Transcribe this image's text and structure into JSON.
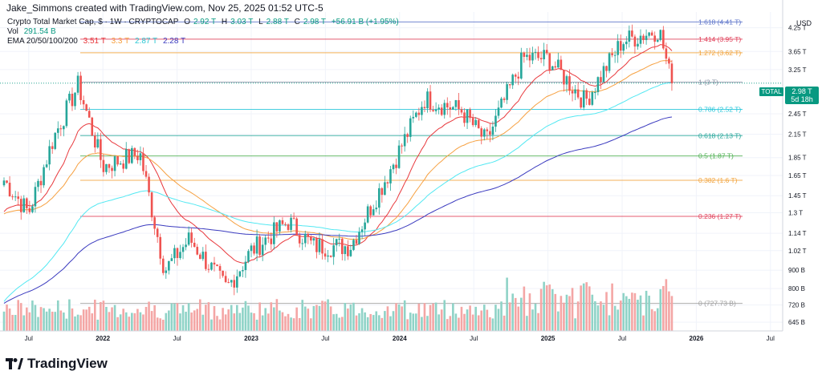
{
  "header": {
    "created_by": "Jake_Simmons created with TradingView.com, Nov 25, 2025 01:52 UTC-5"
  },
  "legend": {
    "symbol": "Crypto Total Market Cap, $ · 1W · CRYPTOCAP",
    "ohlc": [
      {
        "key": "O",
        "value": "2.92 T"
      },
      {
        "key": "H",
        "value": "3.03 T"
      },
      {
        "key": "L",
        "value": "2.88 T"
      },
      {
        "key": "C",
        "value": "2.98 T"
      }
    ],
    "change": "+56.91 B (+1.95%)",
    "vol_label": "Vol",
    "vol_value": "291.54 B",
    "ema_label": "EMA 20/50/100/200",
    "ema_values": [
      "3.51 T",
      "3.3 T",
      "2.87 T",
      "2.28 T"
    ]
  },
  "price_axis": {
    "currency": "USD",
    "ticks": [
      "4.25 T",
      "3.65 T",
      "3.25 T",
      "2.45 T",
      "2.15 T",
      "1.85 T",
      "1.65 T",
      "1.45 T",
      "1.3 T",
      "1.14 T",
      "1.02 T",
      "900 B",
      "800 B",
      "720 B",
      "645 B"
    ]
  },
  "time_axis": {
    "labels": [
      "Jul",
      "2022",
      "Jul",
      "2023",
      "Jul",
      "2024",
      "Jul",
      "2025",
      "Jul",
      "2026",
      "Jul"
    ]
  },
  "badges": {
    "symbol": "TOTAL",
    "last_price": "2.98 T",
    "countdown": "5d 18h"
  },
  "colors": {
    "up": "#26a69a",
    "down": "#ef5350",
    "vol_up": "#8fd3c7",
    "vol_down": "#f4a6a5",
    "ema20": "#e8383c",
    "ema50": "#f6a040",
    "ema100": "#53e8f2",
    "ema200": "#3b3bbf"
  },
  "chart_data": {
    "type": "candlestick",
    "title": "Crypto Total Market Cap, $ · 1W · CRYPTOCAP",
    "xlabel": "",
    "ylabel": "USD",
    "x_range": [
      "2021-05",
      "2026-08"
    ],
    "fib_levels": [
      {
        "ratio": "1.618",
        "value": "4.41 T",
        "color": "#5b73c9"
      },
      {
        "ratio": "1.414",
        "value": "3.95 T",
        "color": "#e0405a"
      },
      {
        "ratio": "1.272",
        "value": "3.62 T",
        "color": "#f2a33b"
      },
      {
        "ratio": "1",
        "value": "3 T",
        "color": "#8a94a6"
      },
      {
        "ratio": "0.786",
        "value": "2.52 T",
        "color": "#26c6da"
      },
      {
        "ratio": "0.618",
        "value": "2.13 T",
        "color": "#26a69a"
      },
      {
        "ratio": "0.5",
        "value": "1.87 T",
        "color": "#4caf50"
      },
      {
        "ratio": "0.382",
        "value": "1.6 T",
        "color": "#f2a33b"
      },
      {
        "ratio": "0.236",
        "value": "1.27 T",
        "color": "#e0405a"
      },
      {
        "ratio": "0",
        "value": "727.73 B",
        "color": "#9e9e9e"
      }
    ],
    "trend_points_T": [
      {
        "date": "2021-05",
        "close": 1.6
      },
      {
        "date": "2021-07",
        "close": 1.3
      },
      {
        "date": "2021-09",
        "close": 2.1
      },
      {
        "date": "2021-11",
        "close": 2.95
      },
      {
        "date": "2022-01",
        "close": 1.75
      },
      {
        "date": "2022-04",
        "close": 1.9
      },
      {
        "date": "2022-06",
        "close": 0.9
      },
      {
        "date": "2022-08",
        "close": 1.1
      },
      {
        "date": "2022-11",
        "close": 0.8
      },
      {
        "date": "2023-01",
        "close": 1.02
      },
      {
        "date": "2023-04",
        "close": 1.23
      },
      {
        "date": "2023-06",
        "close": 1.05
      },
      {
        "date": "2023-09",
        "close": 1.05
      },
      {
        "date": "2023-12",
        "close": 1.65
      },
      {
        "date": "2024-03",
        "close": 2.7
      },
      {
        "date": "2024-06",
        "close": 2.5
      },
      {
        "date": "2024-08",
        "close": 2.05
      },
      {
        "date": "2024-11",
        "close": 3.5
      },
      {
        "date": "2025-01",
        "close": 3.5
      },
      {
        "date": "2025-04",
        "close": 2.65
      },
      {
        "date": "2025-07",
        "close": 3.9
      },
      {
        "date": "2025-10",
        "close": 4.2
      },
      {
        "date": "2025-11",
        "close": 2.98
      }
    ],
    "last": {
      "open": 2.92,
      "high": 3.03,
      "low": 2.88,
      "close": 2.98,
      "unit": "T"
    },
    "volume_last": "291.54 B"
  }
}
